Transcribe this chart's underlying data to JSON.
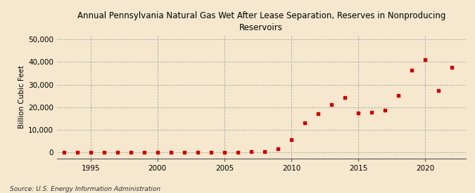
{
  "title": "Annual Pennsylvania Natural Gas Wet After Lease Separation, Reserves in Nonproducing\nReservoirs",
  "ylabel": "Billion Cubic Feet",
  "source": "Source: U.S. Energy Information Administration",
  "background_color": "#f5e8ce",
  "plot_background_color": "#f5e8ce",
  "marker_color": "#cc0000",
  "marker": "s",
  "marker_size": 3.5,
  "xlim": [
    1992.5,
    2023
  ],
  "ylim": [
    -2500,
    52000
  ],
  "yticks": [
    0,
    10000,
    20000,
    30000,
    40000,
    50000
  ],
  "xticks": [
    1995,
    2000,
    2005,
    2010,
    2015,
    2020
  ],
  "years": [
    1993,
    1994,
    1995,
    1996,
    1997,
    1998,
    1999,
    2000,
    2001,
    2002,
    2003,
    2004,
    2005,
    2006,
    2007,
    2008,
    2009,
    2010,
    2011,
    2012,
    2013,
    2014,
    2015,
    2016,
    2017,
    2018,
    2019,
    2020,
    2021,
    2022
  ],
  "values": [
    50,
    30,
    40,
    60,
    50,
    40,
    60,
    70,
    80,
    90,
    100,
    110,
    120,
    200,
    300,
    500,
    1800,
    5800,
    13000,
    17200,
    21300,
    24200,
    17400,
    17800,
    18800,
    25200,
    36500,
    41000,
    27500,
    37500
  ]
}
